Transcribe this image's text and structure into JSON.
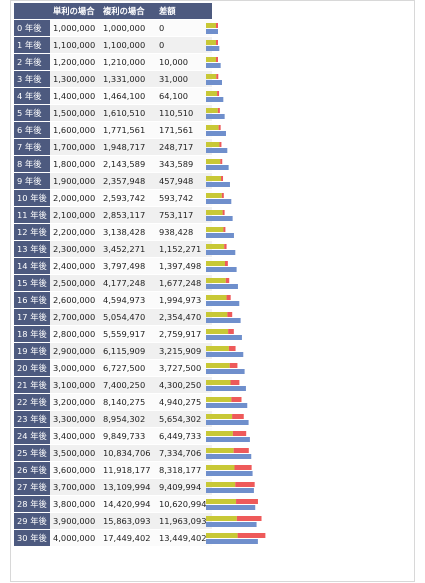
{
  "colors": {
    "header_bg": "#4d5a7f",
    "simple": "#c8c836",
    "diff": "#ee5a5a",
    "compound_bar": "#6f8fcc"
  },
  "chart_data": {
    "type": "bar",
    "columns": [
      "",
      "単利の場合",
      "複利の場合",
      "差額"
    ],
    "categories": [
      "0 年後",
      "1 年後",
      "2 年後",
      "3 年後",
      "4 年後",
      "5 年後",
      "6 年後",
      "7 年後",
      "8 年後",
      "9 年後",
      "10 年後",
      "11 年後",
      "12 年後",
      "13 年後",
      "14 年後",
      "15 年後",
      "16 年後",
      "17 年後",
      "18 年後",
      "19 年後",
      "20 年後",
      "21 年後",
      "22 年後",
      "23 年後",
      "24 年後",
      "25 年後",
      "26 年後",
      "27 年後",
      "28 年後",
      "29 年後",
      "30 年後"
    ],
    "simple_text": [
      "1,000,000",
      "1,100,000",
      "1,200,000",
      "1,300,000",
      "1,400,000",
      "1,500,000",
      "1,600,000",
      "1,700,000",
      "1,800,000",
      "1,900,000",
      "2,000,000",
      "2,100,000",
      "2,200,000",
      "2,300,000",
      "2,400,000",
      "2,500,000",
      "2,600,000",
      "2,700,000",
      "2,800,000",
      "2,900,000",
      "3,000,000",
      "3,100,000",
      "3,200,000",
      "3,300,000",
      "3,400,000",
      "3,500,000",
      "3,600,000",
      "3,700,000",
      "3,800,000",
      "3,900,000",
      "4,000,000"
    ],
    "compound_text": [
      "1,000,000",
      "1,100,000",
      "1,210,000",
      "1,331,000",
      "1,464,100",
      "1,610,510",
      "1,771,561",
      "1,948,717",
      "2,143,589",
      "2,357,948",
      "2,593,742",
      "2,853,117",
      "3,138,428",
      "3,452,271",
      "3,797,498",
      "4,177,248",
      "4,594,973",
      "5,054,470",
      "5,559,917",
      "6,115,909",
      "6,727,500",
      "7,400,250",
      "8,140,275",
      "8,954,302",
      "9,849,733",
      "10,834,706",
      "11,918,177",
      "13,109,994",
      "14,420,994",
      "15,863,093",
      "17,449,402"
    ],
    "diff_text": [
      "0",
      "0",
      "10,000",
      "31,000",
      "64,100",
      "110,510",
      "171,561",
      "248,717",
      "343,589",
      "457,948",
      "593,742",
      "753,117",
      "938,428",
      "1,152,271",
      "1,397,498",
      "1,677,248",
      "1,994,973",
      "2,354,470",
      "2,759,917",
      "3,215,909",
      "3,727,500",
      "4,300,250",
      "4,940,275",
      "5,654,302",
      "6,449,733",
      "7,334,706",
      "8,318,177",
      "9,409,994",
      "10,620,994",
      "11,963,093",
      "13,449,402"
    ],
    "series": [
      {
        "values": [
          1000000,
          1100000,
          1200000,
          1300000,
          1400000,
          1500000,
          1600000,
          1700000,
          1800000,
          1900000,
          2000000,
          2100000,
          2200000,
          2300000,
          2400000,
          2500000,
          2600000,
          2700000,
          2800000,
          2900000,
          3000000,
          3100000,
          3200000,
          3300000,
          3400000,
          3500000,
          3600000,
          3700000,
          3800000,
          3900000,
          4000000
        ]
      },
      {
        "values": [
          1000000,
          1100000,
          1210000,
          1331000,
          1464100,
          1610510,
          1771561,
          1948717,
          2143589,
          2357948,
          2593742,
          2853117,
          3138428,
          3452271,
          3797498,
          4177248,
          4594973,
          5054470,
          5559917,
          6115909,
          6727500,
          7400250,
          8140275,
          8954302,
          9849733,
          10834706,
          11918177,
          13109994,
          14420994,
          15863093,
          17449402
        ]
      },
      {
        "values": [
          0,
          0,
          10000,
          31000,
          64100,
          110510,
          171561,
          248717,
          343589,
          457948,
          593742,
          753117,
          938428,
          1152271,
          1397498,
          1677248,
          1994973,
          2354470,
          2759917,
          3215909,
          3727500,
          4300250,
          4940275,
          5654302,
          6449733,
          7334706,
          8318177,
          9409994,
          10620994,
          11963093,
          13449402
        ]
      }
    ]
  }
}
